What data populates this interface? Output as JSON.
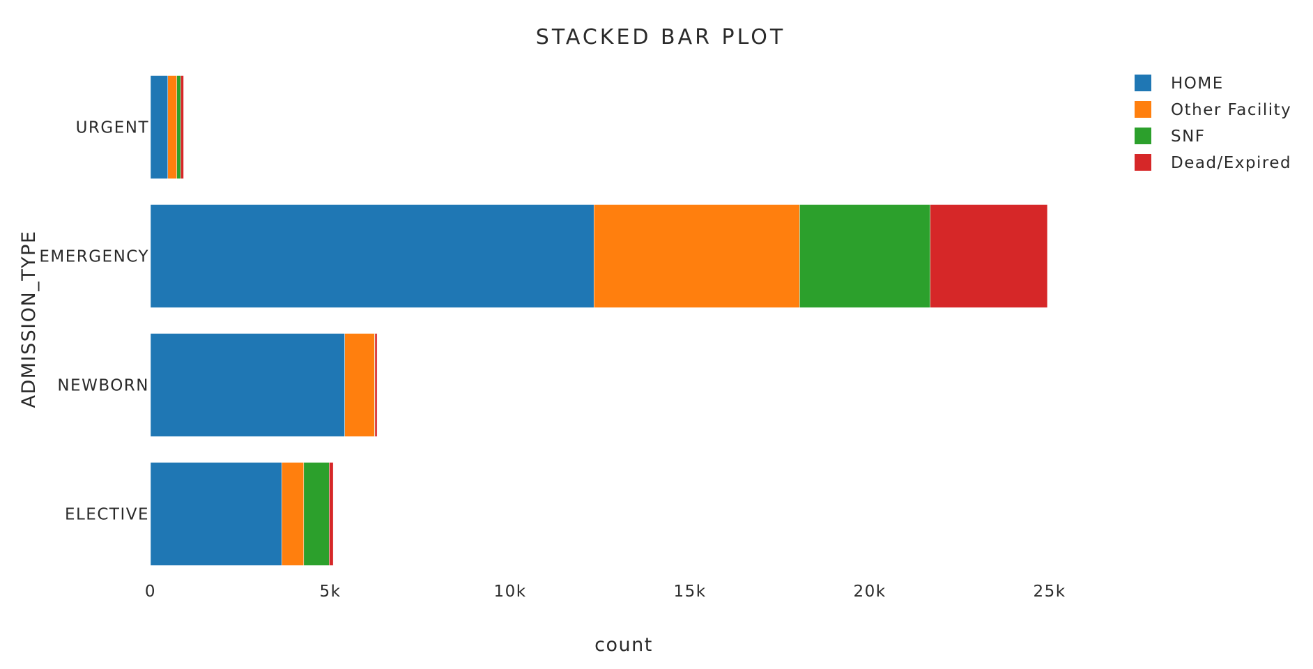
{
  "chart_data": {
    "type": "bar",
    "orientation": "horizontal",
    "barmode": "stack",
    "title": "STACKED BAR PLOT",
    "xlabel": "count",
    "ylabel": "ADMISSION_TYPE",
    "categories": [
      "ELECTIVE",
      "NEWBORN",
      "EMERGENCY",
      "URGENT"
    ],
    "series": [
      {
        "name": "HOME",
        "color": "#1f77b4",
        "values": [
          3650,
          5400,
          12330,
          480
        ]
      },
      {
        "name": "Other Facility",
        "color": "#ff7f0e",
        "values": [
          610,
          830,
          5720,
          250
        ]
      },
      {
        "name": "SNF",
        "color": "#2ca02c",
        "values": [
          710,
          10,
          3630,
          110
        ]
      },
      {
        "name": "Dead/Expired",
        "color": "#d62728",
        "values": [
          110,
          60,
          3260,
          80
        ]
      }
    ],
    "xlim": [
      0,
      25000
    ],
    "xticks": [
      0,
      5000,
      10000,
      15000,
      20000,
      25000
    ],
    "xtick_labels": [
      "0",
      "5k",
      "10k",
      "15k",
      "20k",
      "25k"
    ],
    "legend_position": "top-right",
    "grid": false
  }
}
